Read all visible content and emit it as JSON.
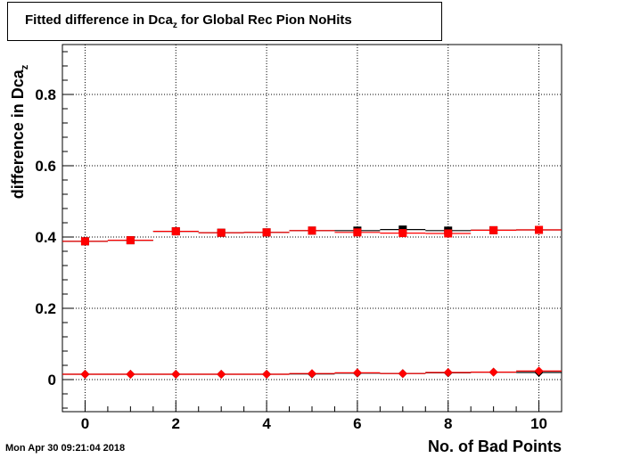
{
  "title": {
    "main": "Fitted difference in Dca",
    "sub": "z",
    "tail": " for Global Rec Pion NoHits"
  },
  "timestamp": "Mon Apr 30 09:21:04 2018",
  "chart_data": {
    "type": "scatter",
    "xlabel": "No. of Bad Points",
    "ylabel": {
      "main": "difference in Dca",
      "sub": "z"
    },
    "xlim": [
      -0.5,
      10.5
    ],
    "ylim": [
      -0.09,
      0.94
    ],
    "xticks": [
      0,
      2,
      4,
      6,
      8,
      10
    ],
    "yticks": [
      0,
      0.2,
      0.4,
      0.6,
      0.8
    ],
    "grid": true,
    "x": [
      0,
      1,
      2,
      3,
      4,
      5,
      6,
      7,
      8,
      9,
      10
    ],
    "series": [
      {
        "marker": "square",
        "color": "#000000",
        "values": [
          0.388,
          0.391,
          0.416,
          0.412,
          0.413,
          0.418,
          0.418,
          0.421,
          0.418,
          0.419,
          0.42
        ]
      },
      {
        "marker": "square",
        "color": "#ff0000",
        "values": [
          0.388,
          0.391,
          0.416,
          0.412,
          0.413,
          0.418,
          0.413,
          0.411,
          0.41,
          0.419,
          0.42
        ]
      },
      {
        "marker": "diamond",
        "color": "#000000",
        "values": [
          0.015,
          0.015,
          0.015,
          0.015,
          0.015,
          0.016,
          0.018,
          0.017,
          0.019,
          0.021,
          0.02
        ]
      },
      {
        "marker": "diamond",
        "color": "#ff0000",
        "values": [
          0.015,
          0.015,
          0.015,
          0.015,
          0.015,
          0.017,
          0.019,
          0.017,
          0.02,
          0.021,
          0.024
        ]
      }
    ]
  }
}
